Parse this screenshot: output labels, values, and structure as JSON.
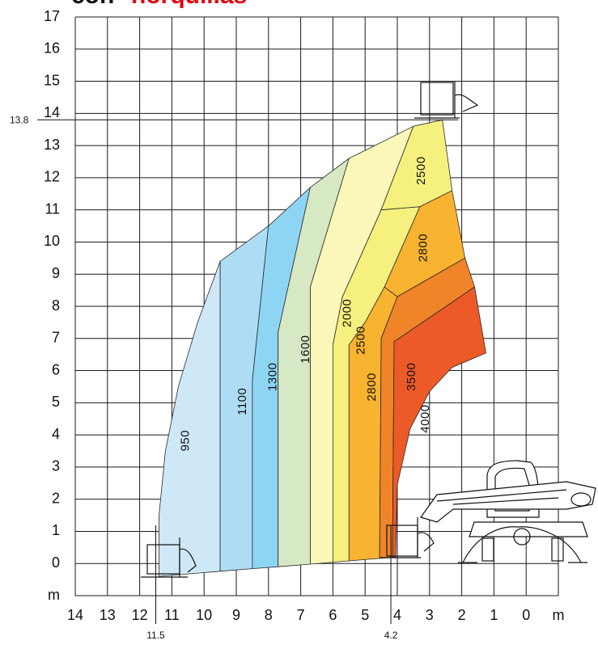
{
  "chart_data": {
    "type": "load-chart",
    "title_prefix": "con",
    "title": "horquillas",
    "xlim": [
      14,
      -1
    ],
    "ylim": [
      -1,
      17
    ],
    "xticks": [
      14,
      13,
      12,
      11,
      10,
      9,
      8,
      7,
      6,
      5,
      4,
      3,
      2,
      1,
      0,
      {
        "value": -1,
        "label": "m"
      }
    ],
    "yticks": [
      17,
      16,
      15,
      14,
      13,
      12,
      11,
      10,
      9,
      8,
      7,
      6,
      5,
      4,
      3,
      2,
      1,
      0,
      {
        "value": -1,
        "label": "m"
      }
    ],
    "grid": true,
    "zones": [
      {
        "label": 950,
        "color": "#cfe8f8",
        "points": [
          [
            11.4,
            -0.4
          ],
          [
            11.4,
            1.5
          ],
          [
            11.2,
            3.5
          ],
          [
            10.8,
            5.5
          ],
          [
            10.2,
            7.5
          ],
          [
            9.5,
            9.4
          ],
          [
            9.5,
            -0.24
          ]
        ]
      },
      {
        "label": 1100,
        "color": "#aedcf5",
        "points": [
          [
            9.5,
            -0.24
          ],
          [
            9.5,
            9.4
          ],
          [
            8.0,
            10.5
          ],
          [
            8.5,
            5.7
          ],
          [
            8.5,
            -0.16
          ]
        ]
      },
      {
        "label": 1300,
        "color": "#8ed5f4",
        "points": [
          [
            8.5,
            -0.16
          ],
          [
            8.5,
            5.7
          ],
          [
            8.0,
            10.5
          ],
          [
            6.7,
            11.7
          ],
          [
            7.7,
            7.2
          ],
          [
            7.7,
            -0.1
          ]
        ]
      },
      {
        "label": 1600,
        "color": "#d7e8c4",
        "points": [
          [
            7.7,
            -0.1
          ],
          [
            7.7,
            7.2
          ],
          [
            6.7,
            11.7
          ],
          [
            5.5,
            12.6
          ],
          [
            6.7,
            8.6
          ],
          [
            6.7,
            -0.02
          ]
        ]
      },
      {
        "label": 2000,
        "color": "#fbf7b8",
        "points": [
          [
            6.7,
            -0.02
          ],
          [
            6.7,
            8.6
          ],
          [
            5.5,
            12.6
          ],
          [
            3.5,
            13.6
          ],
          [
            4.5,
            11.0
          ],
          [
            5.3,
            9.2
          ],
          [
            5.7,
            8.3
          ],
          [
            6.0,
            6.8
          ],
          [
            6.0,
            0.04
          ]
        ]
      },
      {
        "label": 2500,
        "color": "#f6f07e",
        "points": [
          [
            6.0,
            0.04
          ],
          [
            6.0,
            6.8
          ],
          [
            5.7,
            8.3
          ],
          [
            5.3,
            9.2
          ],
          [
            4.5,
            11.0
          ],
          [
            3.3,
            11.1
          ],
          [
            4.4,
            8.6
          ],
          [
            5.0,
            7.5
          ],
          [
            5.5,
            6.8
          ],
          [
            5.5,
            0.08
          ]
        ]
      },
      {
        "label": 2500,
        "color": "#f6f07e",
        "points": [
          [
            4.5,
            11.0
          ],
          [
            3.5,
            13.6
          ],
          [
            2.6,
            13.8
          ],
          [
            2.3,
            11.6
          ],
          [
            3.3,
            11.1
          ]
        ]
      },
      {
        "label": 2800,
        "color": "#f8b330",
        "points": [
          [
            5.5,
            0.08
          ],
          [
            5.5,
            6.8
          ],
          [
            5.0,
            7.5
          ],
          [
            4.4,
            8.6
          ],
          [
            4.0,
            8.3
          ],
          [
            4.5,
            7.0
          ],
          [
            4.55,
            0.16
          ]
        ]
      },
      {
        "label": 2800,
        "color": "#f8b330",
        "points": [
          [
            3.3,
            11.1
          ],
          [
            2.3,
            11.6
          ],
          [
            1.9,
            9.5
          ],
          [
            4.0,
            8.3
          ],
          [
            4.4,
            8.6
          ]
        ]
      },
      {
        "label": 3500,
        "color": "#f08429",
        "points": [
          [
            4.55,
            0.16
          ],
          [
            4.5,
            7.0
          ],
          [
            4.0,
            8.3
          ],
          [
            1.9,
            9.5
          ],
          [
            1.6,
            8.6
          ],
          [
            4.1,
            6.9
          ],
          [
            4.15,
            0.19
          ]
        ]
      },
      {
        "label": 4000,
        "color": "#ec5a27",
        "points": [
          [
            4.15,
            0.19
          ],
          [
            4.1,
            6.9
          ],
          [
            1.6,
            8.6
          ],
          [
            1.25,
            6.55
          ],
          [
            2.3,
            6.1
          ],
          [
            3.0,
            5.35
          ],
          [
            3.6,
            4.2
          ],
          [
            4.0,
            2.45
          ],
          [
            4.05,
            0.2
          ]
        ]
      }
    ],
    "annotations": [
      {
        "axis": "y",
        "value": 13.8
      },
      {
        "axis": "x",
        "value": 11.5
      },
      {
        "axis": "x",
        "value": 4.2
      }
    ]
  }
}
